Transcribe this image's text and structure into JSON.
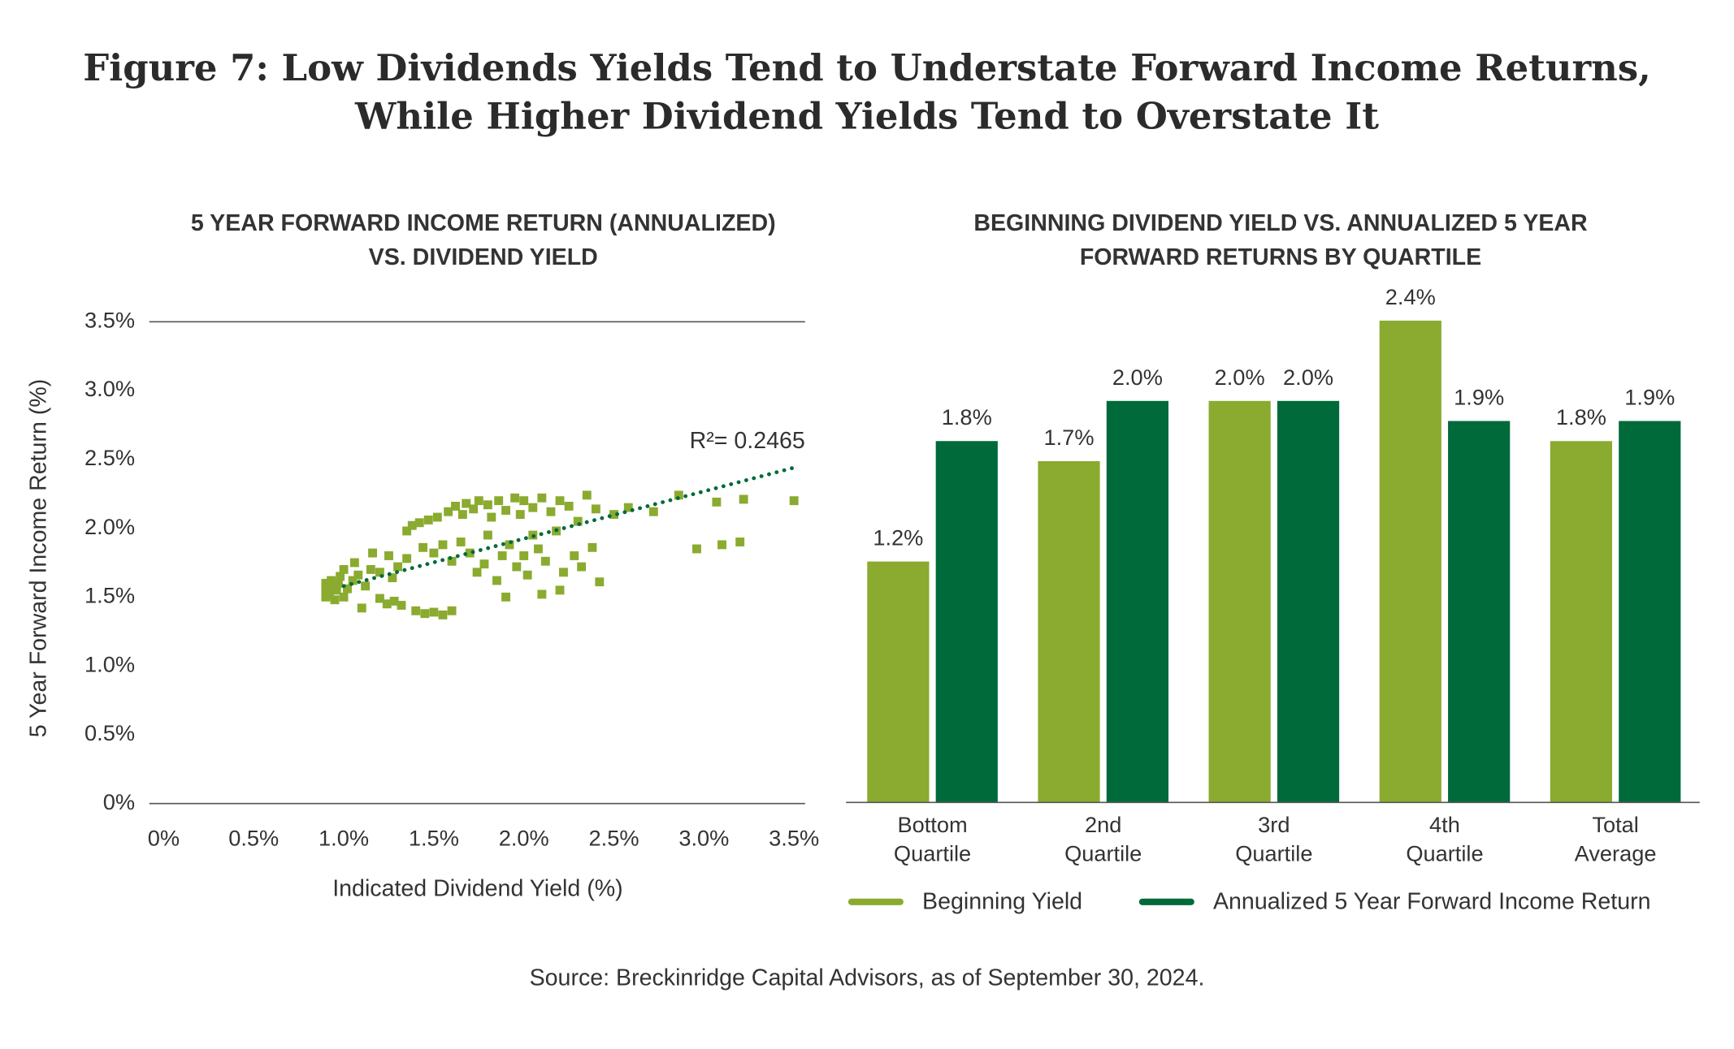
{
  "figure_title": [
    "Figure 7: Low Dividends Yields Tend to Understate Forward Income Returns,",
    "While Higher Dividend Yields Tend to Overstate It"
  ],
  "chart_data": [
    {
      "type": "scatter",
      "title": [
        "5 YEAR FORWARD INCOME RETURN (ANNUALIZED)",
        "VS. DIVIDEND YIELD"
      ],
      "x_label": "Indicated Dividend Yield (%)",
      "y_label": "5 Year Forward Income Return (%)",
      "color": "#8aab2f",
      "x": [
        0.9,
        0.9,
        0.9,
        0.92,
        0.92,
        0.93,
        0.95,
        0.96,
        0.97,
        0.98,
        1.0,
        1.0,
        1.02,
        1.05,
        1.06,
        1.08,
        1.1,
        1.12,
        1.15,
        1.16,
        1.2,
        1.2,
        1.24,
        1.25,
        1.27,
        1.28,
        1.3,
        1.32,
        1.35,
        1.35,
        1.38,
        1.4,
        1.42,
        1.44,
        1.45,
        1.47,
        1.5,
        1.5,
        1.52,
        1.55,
        1.55,
        1.58,
        1.6,
        1.6,
        1.62,
        1.65,
        1.66,
        1.68,
        1.7,
        1.72,
        1.74,
        1.75,
        1.78,
        1.8,
        1.8,
        1.82,
        1.85,
        1.86,
        1.88,
        1.9,
        1.9,
        1.92,
        1.95,
        1.96,
        1.98,
        2.0,
        2.0,
        2.02,
        2.05,
        2.05,
        2.08,
        2.1,
        2.1,
        2.12,
        2.15,
        2.18,
        2.2,
        2.2,
        2.22,
        2.25,
        2.28,
        2.3,
        2.32,
        2.35,
        2.38,
        2.4,
        2.42,
        2.5,
        2.58,
        2.72,
        2.86,
        2.96,
        3.07,
        3.1,
        3.2,
        3.22,
        3.5
      ],
      "values": [
        1.5,
        1.55,
        1.6,
        1.52,
        1.58,
        1.62,
        1.48,
        1.55,
        1.6,
        1.65,
        1.5,
        1.7,
        1.56,
        1.62,
        1.75,
        1.66,
        1.42,
        1.58,
        1.7,
        1.82,
        1.68,
        1.49,
        1.45,
        1.8,
        1.64,
        1.47,
        1.72,
        1.44,
        1.78,
        1.98,
        2.02,
        1.4,
        2.04,
        1.86,
        1.38,
        2.06,
        1.39,
        1.82,
        2.08,
        1.37,
        1.88,
        2.12,
        1.4,
        1.76,
        2.16,
        1.9,
        2.1,
        2.18,
        1.82,
        2.14,
        1.68,
        2.2,
        1.74,
        2.17,
        1.95,
        2.08,
        1.62,
        2.2,
        1.8,
        2.13,
        1.5,
        1.88,
        2.22,
        1.72,
        2.1,
        1.8,
        2.2,
        1.66,
        2.15,
        1.95,
        1.85,
        2.22,
        1.52,
        1.76,
        2.12,
        1.98,
        2.2,
        1.55,
        1.68,
        2.16,
        1.8,
        2.05,
        1.72,
        2.24,
        1.86,
        2.14,
        1.61,
        2.1,
        2.15,
        2.12,
        2.24,
        1.85,
        2.19,
        1.88,
        1.9,
        2.21,
        2.2
      ],
      "trendline": {
        "x": [
          1.0,
          3.5
        ],
        "values": [
          1.58,
          2.44
        ],
        "color": "#006a3a"
      },
      "annotation": "R²= 0.2465",
      "xlim": [
        0,
        3.5
      ],
      "xticks": [
        {
          "value": 0,
          "label": "0%"
        },
        {
          "value": 0.5,
          "label": "0.5%"
        },
        {
          "value": 1.0,
          "label": "1.0%"
        },
        {
          "value": 1.5,
          "label": "1.5%"
        },
        {
          "value": 2.0,
          "label": "2.0%"
        },
        {
          "value": 2.5,
          "label": "2.5%"
        },
        {
          "value": 3.0,
          "label": "3.0%"
        },
        {
          "value": 3.5,
          "label": "3.5%"
        }
      ],
      "ylim": [
        0,
        3.5
      ],
      "yticks": [
        {
          "value": 0,
          "label": "0%"
        },
        {
          "value": 0.5,
          "label": "0.5%"
        },
        {
          "value": 1.0,
          "label": "1.0%"
        },
        {
          "value": 1.5,
          "label": "1.5%"
        },
        {
          "value": 2.0,
          "label": "2.0%"
        },
        {
          "value": 2.5,
          "label": "2.5%"
        },
        {
          "value": 3.0,
          "label": "3.0%"
        },
        {
          "value": 3.5,
          "label": "3.5%"
        }
      ]
    },
    {
      "type": "bar",
      "title": [
        "BEGINNING DIVIDEND YIELD VS. ANNUALIZED 5 YEAR",
        "FORWARD RETURNS BY QUARTILE"
      ],
      "categories": [
        "Bottom Quartile",
        "2nd Quartile",
        "3rd Quartile",
        "4th Quartile",
        "Total Average"
      ],
      "series": [
        {
          "name": "Beginning Yield",
          "color": "#8aab2f",
          "values": [
            1.2,
            1.7,
            2.0,
            2.4,
            1.8
          ],
          "value_labels": [
            "1.2%",
            "1.7%",
            "2.0%",
            "2.4%",
            "1.8%"
          ]
        },
        {
          "name": "Annualized 5 Year Forward Income Return",
          "color": "#006a3a",
          "values": [
            1.8,
            2.0,
            2.0,
            1.9,
            1.9
          ],
          "value_labels": [
            "1.8%",
            "2.0%",
            "2.0%",
            "1.9%",
            "1.9%"
          ]
        }
      ],
      "ylim": [
        0,
        2.4
      ],
      "legend": "bottom"
    }
  ],
  "source": "Source: Breckinridge Capital Advisors, as of September 30, 2024."
}
